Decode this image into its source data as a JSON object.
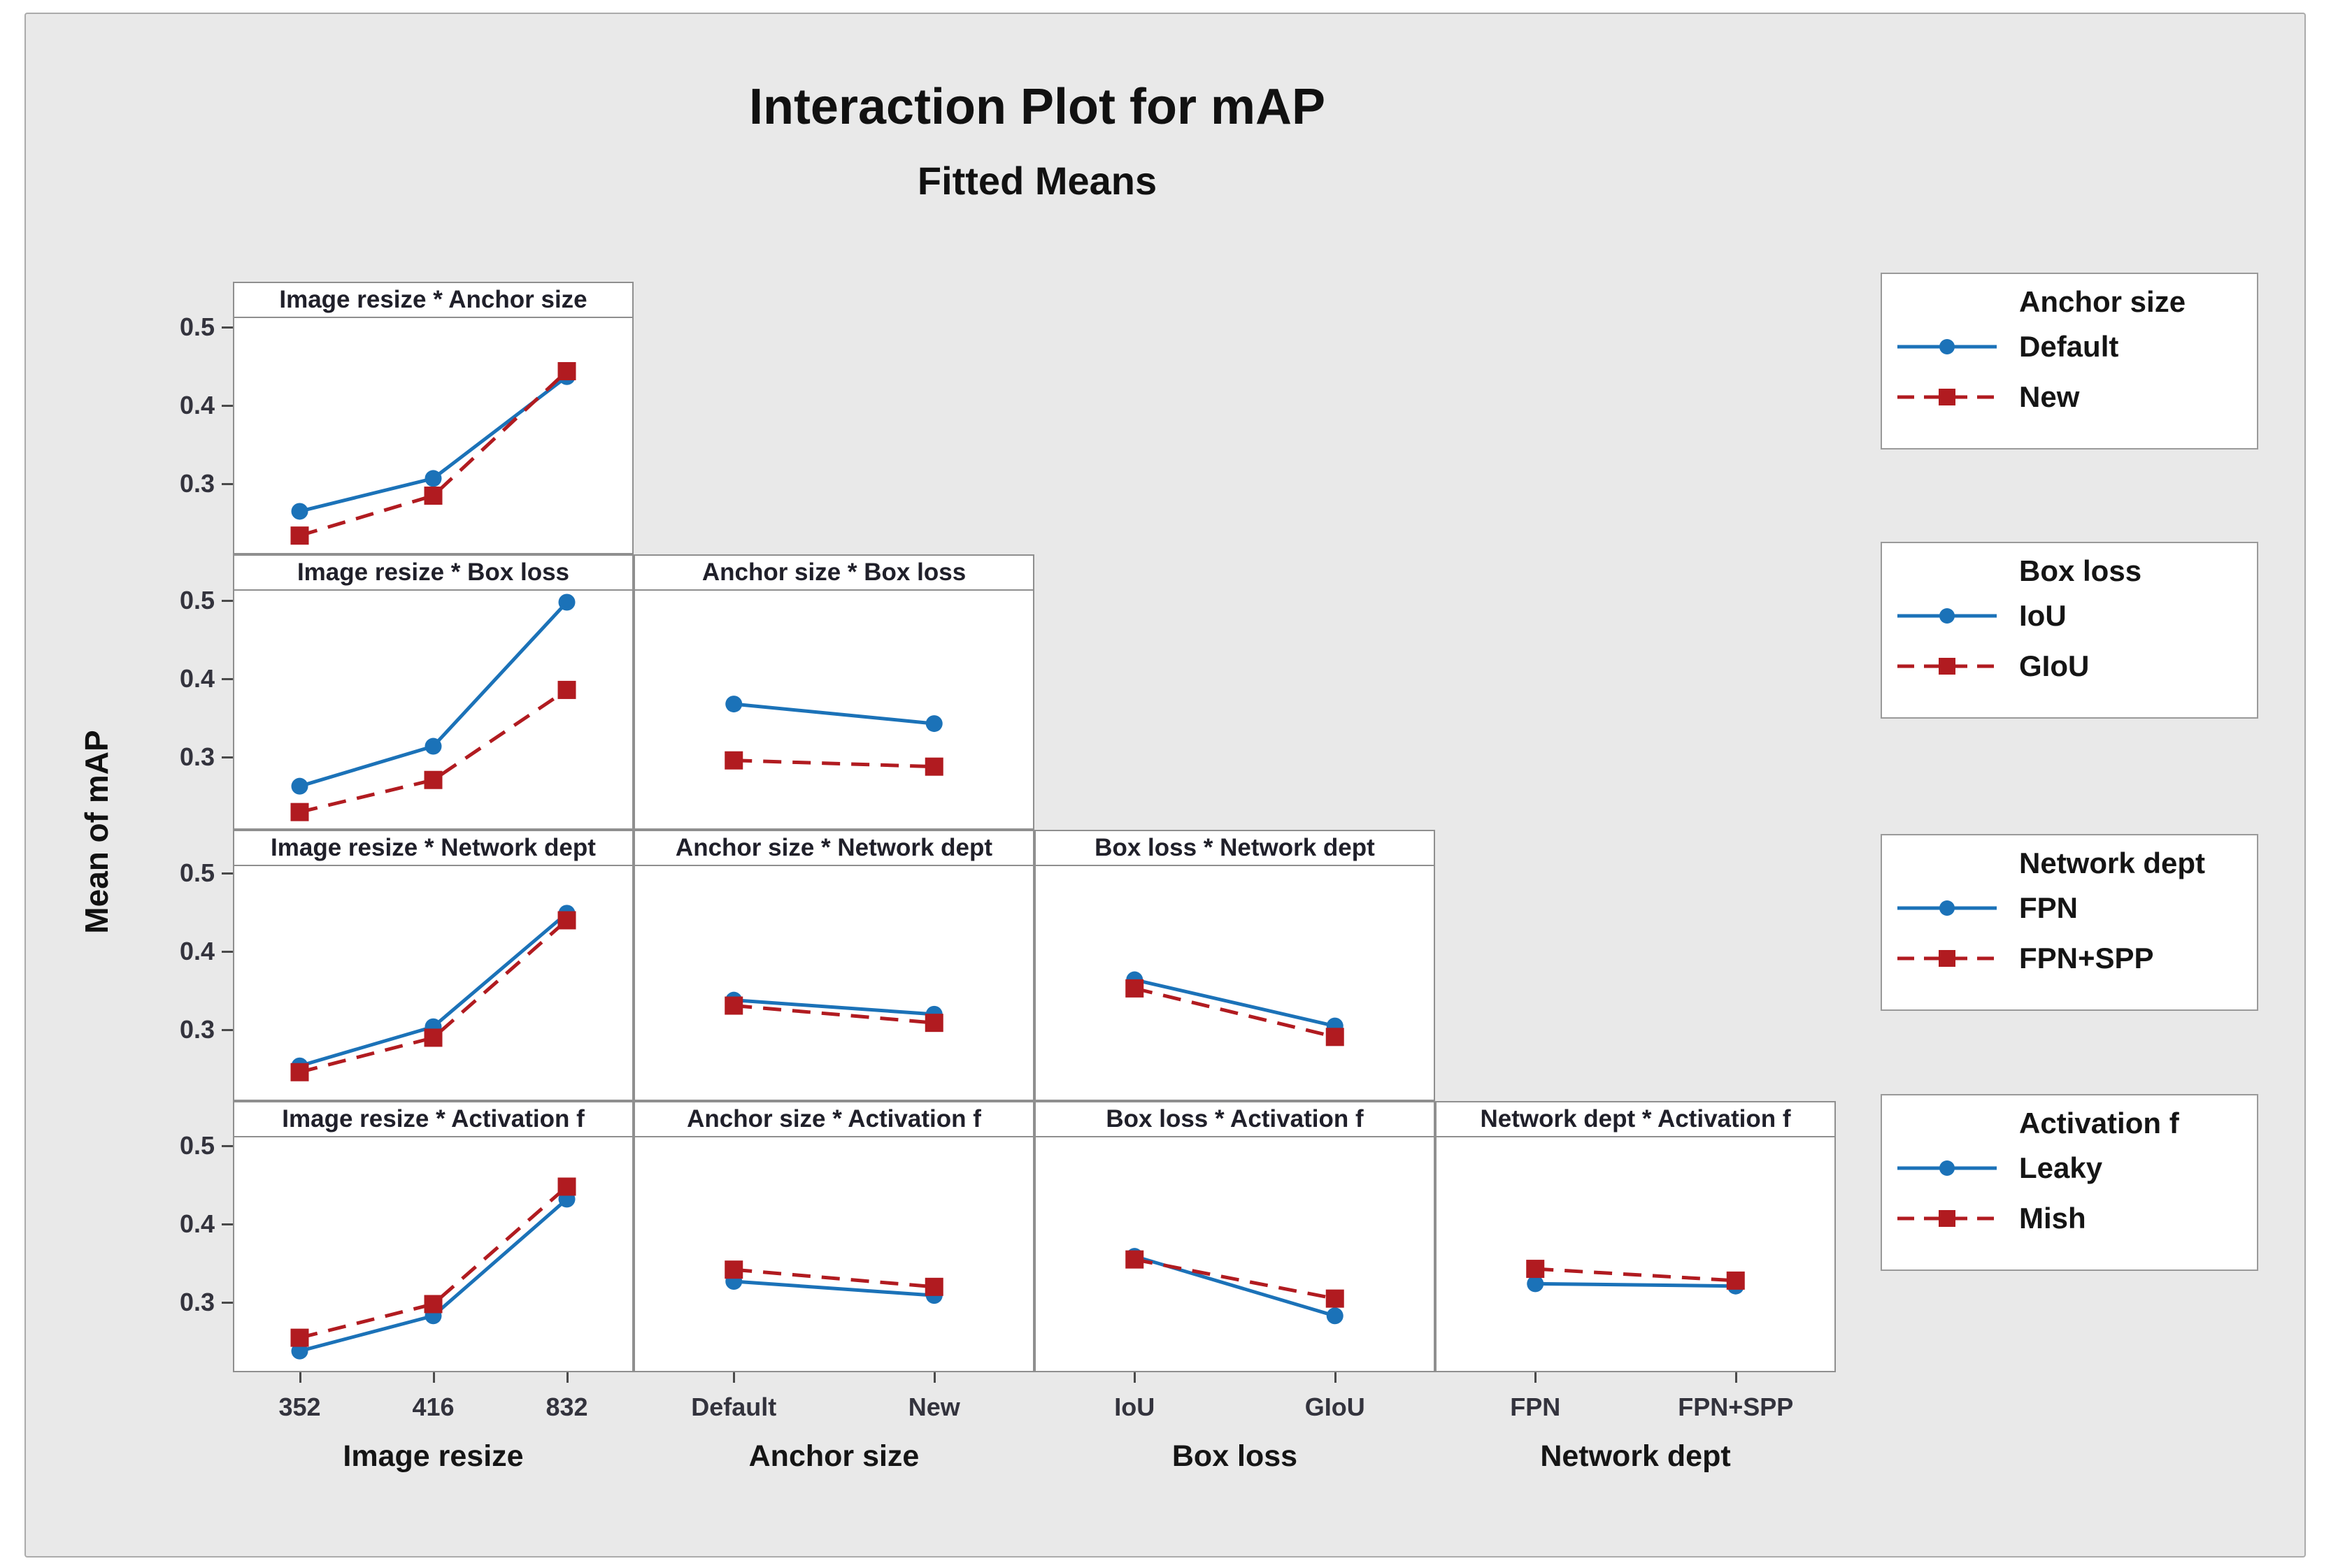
{
  "figure": {
    "title": "Interaction Plot for mAP",
    "subtitle": "Fitted Means"
  },
  "palette": {
    "blue": "#1b72b8",
    "red": "#b11b20",
    "background": "#e9e9e9",
    "panel_border": "#8f8f8f",
    "text": "#151515"
  },
  "chart_data": {
    "type": "line",
    "title": "Interaction Plot for mAP",
    "subtitle": "Fitted Means",
    "ylabel": "Mean of mAP",
    "yticks": [
      "0.5",
      "0.4",
      "0.3"
    ],
    "ylim": [
      0.21,
      0.52
    ],
    "grid": "off",
    "legend_position": "right",
    "layout": "lower-triangular matrix of interaction panels",
    "factors": [
      {
        "name": "Image resize",
        "levels": [
          "352",
          "416",
          "832"
        ]
      },
      {
        "name": "Anchor size",
        "levels": [
          "Default",
          "New"
        ]
      },
      {
        "name": "Box loss",
        "levels": [
          "IoU",
          "GIoU"
        ]
      },
      {
        "name": "Network dept",
        "levels": [
          "FPN",
          "FPN+SPP"
        ]
      }
    ],
    "panels": [
      {
        "row": 1,
        "col": 1,
        "title": "Image resize * Anchor size",
        "x_factor": "Image resize",
        "series": [
          {
            "name": "Default",
            "color": "blue",
            "line": "solid",
            "marker": "circle",
            "values": [
              0.263,
              0.305,
              0.435
            ]
          },
          {
            "name": "New",
            "color": "red",
            "line": "dashed",
            "marker": "square",
            "values": [
              0.232,
              0.283,
              0.442
            ]
          }
        ]
      },
      {
        "row": 2,
        "col": 1,
        "title": "Image resize * Box loss",
        "x_factor": "Image resize",
        "series": [
          {
            "name": "IoU",
            "color": "blue",
            "line": "solid",
            "marker": "circle",
            "values": [
              0.261,
              0.312,
              0.496
            ]
          },
          {
            "name": "GIoU",
            "color": "red",
            "line": "dashed",
            "marker": "square",
            "values": [
              0.228,
              0.269,
              0.384
            ]
          }
        ]
      },
      {
        "row": 2,
        "col": 2,
        "title": "Anchor size * Box loss",
        "x_factor": "Anchor size",
        "series": [
          {
            "name": "IoU",
            "color": "blue",
            "line": "solid",
            "marker": "circle",
            "values": [
              0.366,
              0.341
            ]
          },
          {
            "name": "GIoU",
            "color": "red",
            "line": "dashed",
            "marker": "square",
            "values": [
              0.294,
              0.286
            ]
          }
        ]
      },
      {
        "row": 3,
        "col": 1,
        "title": "Image resize * Network dept",
        "x_factor": "Image resize",
        "series": [
          {
            "name": "FPN",
            "color": "blue",
            "line": "solid",
            "marker": "circle",
            "values": [
              0.252,
              0.302,
              0.447
            ]
          },
          {
            "name": "FPN+SPP",
            "color": "red",
            "line": "dashed",
            "marker": "square",
            "values": [
              0.244,
              0.288,
              0.438
            ]
          }
        ]
      },
      {
        "row": 3,
        "col": 2,
        "title": "Anchor size * Network dept",
        "x_factor": "Anchor size",
        "series": [
          {
            "name": "FPN",
            "color": "blue",
            "line": "solid",
            "marker": "circle",
            "values": [
              0.336,
              0.318
            ]
          },
          {
            "name": "FPN+SPP",
            "color": "red",
            "line": "dashed",
            "marker": "square",
            "values": [
              0.329,
              0.307
            ]
          }
        ]
      },
      {
        "row": 3,
        "col": 3,
        "title": "Box loss * Network dept",
        "x_factor": "Box loss",
        "series": [
          {
            "name": "FPN",
            "color": "blue",
            "line": "solid",
            "marker": "circle",
            "values": [
              0.362,
              0.303
            ]
          },
          {
            "name": "FPN+SPP",
            "color": "red",
            "line": "dashed",
            "marker": "square",
            "values": [
              0.351,
              0.289
            ]
          }
        ]
      },
      {
        "row": 4,
        "col": 1,
        "title": "Image resize * Activation f",
        "x_factor": "Image resize",
        "series": [
          {
            "name": "Leaky",
            "color": "blue",
            "line": "solid",
            "marker": "circle",
            "values": [
              0.236,
              0.281,
              0.43
            ]
          },
          {
            "name": "Mish",
            "color": "red",
            "line": "dashed",
            "marker": "square",
            "values": [
              0.253,
              0.296,
              0.446
            ]
          }
        ]
      },
      {
        "row": 4,
        "col": 2,
        "title": "Anchor size * Activation f",
        "x_factor": "Anchor size",
        "series": [
          {
            "name": "Leaky",
            "color": "blue",
            "line": "solid",
            "marker": "circle",
            "values": [
              0.325,
              0.307
            ]
          },
          {
            "name": "Mish",
            "color": "red",
            "line": "dashed",
            "marker": "square",
            "values": [
              0.34,
              0.318
            ]
          }
        ]
      },
      {
        "row": 4,
        "col": 3,
        "title": "Box loss * Activation f",
        "x_factor": "Box loss",
        "series": [
          {
            "name": "Leaky",
            "color": "blue",
            "line": "solid",
            "marker": "circle",
            "values": [
              0.357,
              0.281
            ]
          },
          {
            "name": "Mish",
            "color": "red",
            "line": "dashed",
            "marker": "square",
            "values": [
              0.353,
              0.303
            ]
          }
        ]
      },
      {
        "row": 4,
        "col": 4,
        "title": "Network dept * Activation f",
        "x_factor": "Network dept",
        "series": [
          {
            "name": "Leaky",
            "color": "blue",
            "line": "solid",
            "marker": "circle",
            "values": [
              0.322,
              0.319
            ]
          },
          {
            "name": "Mish",
            "color": "red",
            "line": "dashed",
            "marker": "square",
            "values": [
              0.341,
              0.326
            ]
          }
        ]
      }
    ],
    "legends": [
      {
        "title": "Anchor size",
        "items": [
          {
            "label": "Default",
            "color": "blue",
            "line": "solid",
            "marker": "circle"
          },
          {
            "label": "New",
            "color": "red",
            "line": "dashed",
            "marker": "square"
          }
        ]
      },
      {
        "title": "Box loss",
        "items": [
          {
            "label": "IoU",
            "color": "blue",
            "line": "solid",
            "marker": "circle"
          },
          {
            "label": "GIoU",
            "color": "red",
            "line": "dashed",
            "marker": "square"
          }
        ]
      },
      {
        "title": "Network dept",
        "items": [
          {
            "label": "FPN",
            "color": "blue",
            "line": "solid",
            "marker": "circle"
          },
          {
            "label": "FPN+SPP",
            "color": "red",
            "line": "dashed",
            "marker": "square"
          }
        ]
      },
      {
        "title": "Activation f",
        "items": [
          {
            "label": "Leaky",
            "color": "blue",
            "line": "solid",
            "marker": "circle"
          },
          {
            "label": "Mish",
            "color": "red",
            "line": "dashed",
            "marker": "square"
          }
        ]
      }
    ]
  }
}
